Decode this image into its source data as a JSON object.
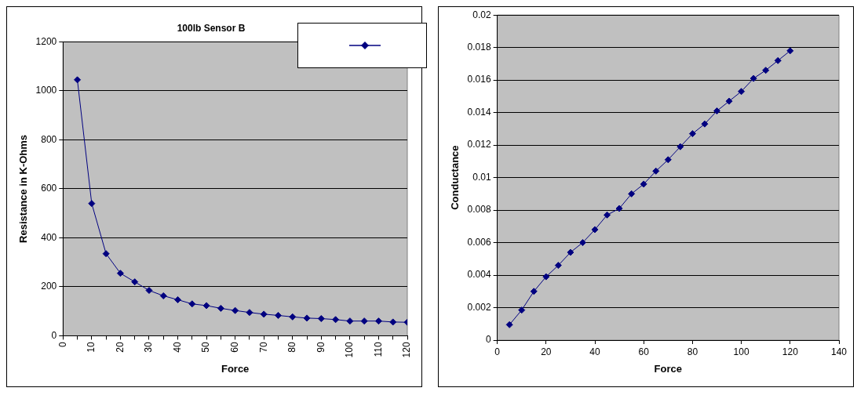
{
  "chart_data": [
    {
      "type": "line",
      "title": "100lb Sensor B",
      "xlabel": "Force",
      "ylabel": "Resistance in K-Ohms",
      "grid": "y",
      "marker": "diamond",
      "line_style": "solid",
      "xlim": [
        0,
        120
      ],
      "xticks": [
        0,
        {
          "value": 5,
          "label": null
        },
        10,
        {
          "value": 15,
          "label": null
        },
        20,
        {
          "value": 25,
          "label": null
        },
        30,
        {
          "value": 35,
          "label": null
        },
        40,
        {
          "value": 45,
          "label": null
        },
        50,
        {
          "value": 55,
          "label": null
        },
        60,
        {
          "value": 65,
          "label": null
        },
        70,
        {
          "value": 75,
          "label": null
        },
        80,
        {
          "value": 85,
          "label": null
        },
        90,
        {
          "value": 95,
          "label": null
        },
        100,
        {
          "value": 105,
          "label": null
        },
        110,
        {
          "value": 115,
          "label": null
        },
        120
      ],
      "ylim": [
        0,
        1200
      ],
      "yticks": [
        0,
        200,
        400,
        600,
        800,
        1000,
        1200
      ],
      "x": [
        5,
        10,
        15,
        20,
        25,
        30,
        35,
        40,
        45,
        50,
        55,
        60,
        65,
        70,
        75,
        80,
        85,
        90,
        95,
        100,
        105,
        110,
        115,
        120
      ],
      "series": [
        {
          "color": "#000080",
          "values": [
            1045,
            540,
            335,
            255,
            220,
            185,
            163,
            147,
            130,
            123,
            112,
            103,
            95,
            88,
            83,
            77,
            72,
            70,
            66,
            60,
            60,
            60,
            56,
            55
          ]
        }
      ]
    },
    {
      "type": "line",
      "xlabel": "Force",
      "ylabel": "Conductance",
      "grid": "y",
      "marker": "diamond",
      "line_style": "solid",
      "xlim": [
        0,
        140
      ],
      "xticks": [
        0,
        20,
        40,
        60,
        80,
        100,
        120,
        140
      ],
      "ylim": [
        0,
        0.02
      ],
      "yticks": [
        0,
        0.002,
        0.004,
        0.006,
        0.008,
        0.01,
        0.012,
        0.014,
        0.016,
        0.018,
        0.02
      ],
      "x": [
        5,
        10,
        15,
        20,
        25,
        30,
        35,
        40,
        45,
        50,
        55,
        60,
        65,
        70,
        75,
        80,
        85,
        90,
        95,
        100,
        105,
        110,
        115,
        120
      ],
      "series": [
        {
          "color": "#000080",
          "values": [
            0.00095,
            0.00185,
            0.003,
            0.0039,
            0.0046,
            0.0054,
            0.006,
            0.0068,
            0.0077,
            0.0081,
            0.009,
            0.0096,
            0.0104,
            0.0111,
            0.0119,
            0.0127,
            0.0133,
            0.0141,
            0.0147,
            0.0153,
            0.0161,
            0.0166,
            0.0172,
            0.0178
          ]
        }
      ]
    }
  ]
}
